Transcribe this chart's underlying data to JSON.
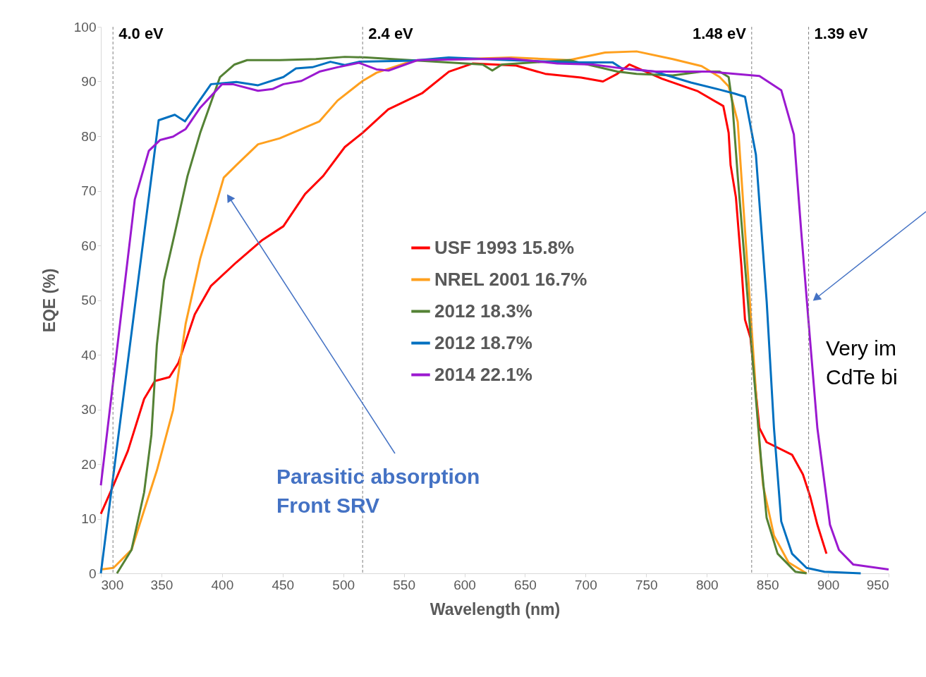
{
  "chart_data": {
    "type": "line",
    "xlabel": "Wavelength (nm)",
    "ylabel": "EQE (%)",
    "xlim": [
      300,
      950
    ],
    "ylim": [
      0,
      100
    ],
    "xticks": [
      300,
      350,
      400,
      450,
      500,
      550,
      600,
      650,
      700,
      750,
      800,
      850,
      900,
      950
    ],
    "yticks": [
      0,
      10,
      20,
      30,
      40,
      50,
      60,
      70,
      80,
      90,
      100
    ],
    "grid": false,
    "legend": "center",
    "marker": "none",
    "line_style": "solid",
    "ref_lines": [
      {
        "axis": "x",
        "value": 310,
        "label": "4.0 eV"
      },
      {
        "axis": "x",
        "value": 516,
        "label": "2.4 eV"
      },
      {
        "axis": "x",
        "value": 837,
        "label": "1.48 eV"
      },
      {
        "axis": "x",
        "value": 884,
        "label": "1.39 eV"
      }
    ],
    "annotations": [
      "Parasitic absorption\nFront SRV",
      "Very im\nCdTe bi"
    ],
    "series": [
      {
        "name": "USF  1993 15.8%",
        "color": "#ff0000",
        "x": [
          300,
          310.4,
          322.3,
          335.7,
          344.6,
          356.6,
          364,
          377.5,
          390.9,
          411.8,
          432.7,
          450.6,
          468.5,
          483.4,
          501.3,
          516,
          537.1,
          565.4,
          587.2,
          607,
          642.7,
          666.6,
          696.3,
          714.3,
          726.2,
          736,
          763,
          792.7,
          813.6,
          818,
          819.6,
          824,
          828.5,
          831.5,
          836,
          843.4,
          849.3,
          870.3,
          879.3,
          885.2,
          891.2,
          898.7
        ],
        "values": [
          10.9,
          16.1,
          22.4,
          31.9,
          35.2,
          35.9,
          38.5,
          47.4,
          52.6,
          56.9,
          60.9,
          63.5,
          69.4,
          72.7,
          78,
          80.6,
          84.9,
          87.9,
          91.8,
          93.3,
          92.9,
          91.4,
          90.7,
          90,
          91.4,
          93.1,
          90.5,
          88.2,
          85.5,
          80.6,
          74.7,
          68.8,
          56.3,
          46.4,
          43.1,
          26.6,
          24,
          21.7,
          18.1,
          14.1,
          8.9,
          3.6
        ]
      },
      {
        "name": "NREL 2001 16.7%",
        "color": "#ffa01e",
        "x": [
          300,
          310.4,
          325.3,
          346.2,
          359.6,
          370,
          382,
          401.4,
          411.8,
          429.7,
          447.6,
          480.4,
          495.3,
          516,
          527.5,
          557.3,
          638.7,
          686.4,
          716,
          742,
          771.8,
          795.7,
          810.6,
          818,
          825.5,
          831.5,
          837.5,
          843.5,
          846.4,
          855.4,
          867.4,
          882.3
        ],
        "values": [
          0.7,
          1,
          4.3,
          18.8,
          29.9,
          45.7,
          57.6,
          72.4,
          74.7,
          78.5,
          79.6,
          82.7,
          86.5,
          90.1,
          91.6,
          93.8,
          94.4,
          93.9,
          95.3,
          95.5,
          94.1,
          92.8,
          90.8,
          89.1,
          82.6,
          62.8,
          43.1,
          23.4,
          16.1,
          6.9,
          2,
          0
        ]
      },
      {
        "name": "2012 18.3%",
        "color": "#548235",
        "x": [
          313.3,
          325.3,
          335.7,
          341.7,
          346.2,
          352.1,
          361,
          371.5,
          382,
          398.3,
          410.3,
          420.7,
          447.6,
          477.4,
          501.3,
          519.2,
          615,
          623,
          630.9,
          686.4,
          726.2,
          742,
          771.8,
          795.8,
          810.6,
          818,
          821.1,
          825.5,
          831.5,
          837.5,
          845,
          849.3,
          858.4,
          873,
          882.3
        ],
        "values": [
          0,
          4.3,
          14.8,
          25.3,
          41.8,
          53.6,
          62.2,
          72.7,
          80.6,
          90.8,
          93.1,
          93.9,
          93.9,
          94.1,
          94.5,
          94.4,
          93.1,
          92,
          93.1,
          93.9,
          91.8,
          91.4,
          91.1,
          91.8,
          91.8,
          90.8,
          85.9,
          72.7,
          56.3,
          39.8,
          20.1,
          10.2,
          3.6,
          0.3,
          0
        ]
      },
      {
        "name": "2012 18.7%",
        "color": "#0070c0",
        "x": [
          300,
          347.7,
          361,
          369.4,
          390.9,
          411.8,
          429.7,
          450.6,
          461,
          474.5,
          489.4,
          501.3,
          513,
          557.3,
          587,
          636.8,
          686.4,
          722.2,
          730,
          756.8,
          786.8,
          810.6,
          822.5,
          831.5,
          840.5,
          849.4,
          855.4,
          861.4,
          870.3,
          882.3,
          897,
          927
        ],
        "values": [
          0,
          82.9,
          83.9,
          82.7,
          89.5,
          89.9,
          89.3,
          90.8,
          92.4,
          92.6,
          93.6,
          93,
          93.6,
          93.8,
          94.4,
          93.9,
          93.5,
          93.5,
          92.4,
          91.8,
          89.8,
          88.5,
          87.8,
          87.2,
          76.6,
          49.7,
          26.6,
          9.5,
          3.6,
          1,
          0.3,
          0
        ]
      },
      {
        "name": "2014 22.1%",
        "color": "#9b19d0",
        "x": [
          300,
          328,
          339.6,
          349,
          359.6,
          370,
          382,
          400,
          408.8,
          429.7,
          441.6,
          450.6,
          465.5,
          480.4,
          495.3,
          513,
          527.5,
          537.4,
          561.3,
          636.8,
          676.5,
          706.3,
          726.2,
          758,
          801.6,
          843.4,
          861.4,
          871.8,
          877.8,
          883.8,
          891.2,
          901.6,
          909,
          920.9,
          950
        ],
        "values": [
          16.1,
          68.4,
          77.3,
          79.3,
          79.9,
          81.3,
          85.2,
          89.5,
          89.5,
          88.3,
          88.6,
          89.5,
          90.1,
          91.8,
          92.6,
          93.4,
          92.2,
          92,
          93.9,
          94.2,
          93.3,
          93.1,
          92.5,
          91.8,
          91.8,
          91,
          88.4,
          80.3,
          62.8,
          46.4,
          26.6,
          8.9,
          4.3,
          1.6,
          0.7
        ]
      }
    ]
  }
}
